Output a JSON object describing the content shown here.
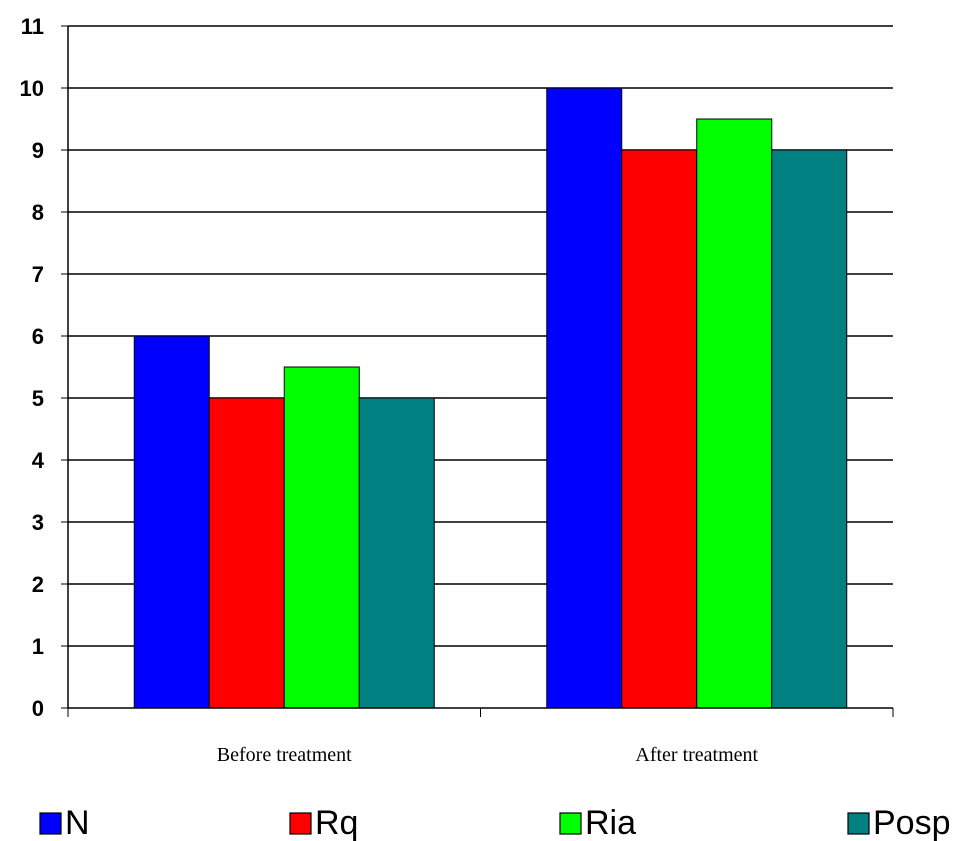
{
  "chart_data": {
    "type": "bar",
    "categories": [
      "Before treatment",
      "After treatment"
    ],
    "series": [
      {
        "name": "N",
        "values": [
          6,
          10
        ],
        "color": "#0000ff"
      },
      {
        "name": "Rq",
        "values": [
          5,
          9
        ],
        "color": "#ff0000"
      },
      {
        "name": "Ria",
        "values": [
          5.5,
          9.5
        ],
        "color": "#00ff00"
      },
      {
        "name": "Posp",
        "values": [
          5,
          9
        ],
        "color": "#008080"
      }
    ],
    "title": "",
    "xlabel": "",
    "ylabel": "",
    "ylim": [
      0,
      11
    ],
    "yticks": [
      0,
      1,
      2,
      3,
      4,
      5,
      6,
      7,
      8,
      9,
      10,
      11
    ],
    "grid": true,
    "legend_position": "bottom"
  }
}
